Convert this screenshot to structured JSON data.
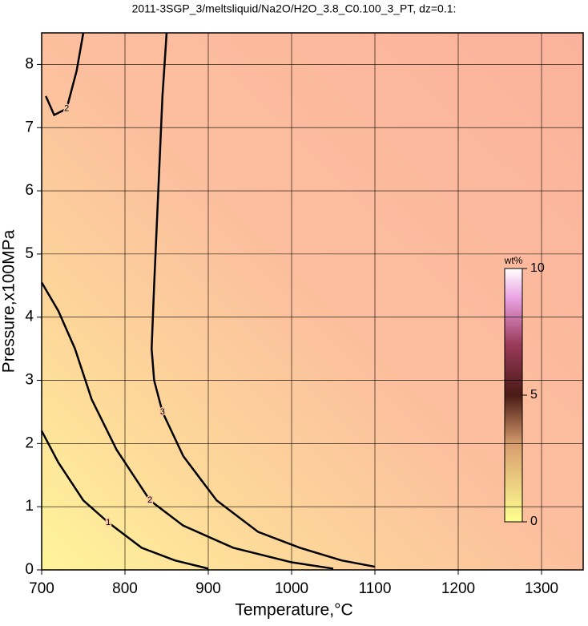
{
  "chart_data": {
    "type": "contour",
    "title": "2011-3SGP_3/meltsliquid/Na2O/H2O_3.8_C0.100_3_PT, dz=0.1:",
    "x_label": "Temperature,°C",
    "y_label": "Pressure,x100MPa",
    "xlim": [
      700,
      1350
    ],
    "xticks": [
      700,
      800,
      900,
      1000,
      1100,
      1200,
      1300
    ],
    "ylim": [
      0,
      8.5
    ],
    "yticks": [
      0,
      1,
      2,
      3,
      4,
      5,
      6,
      7,
      8
    ],
    "grid": true,
    "contours": [
      {
        "level": 1,
        "x": [
          700,
          720,
          750,
          780,
          820,
          860,
          900
        ],
        "y": [
          2.2,
          1.7,
          1.1,
          0.75,
          0.35,
          0.15,
          0.02
        ]
      },
      {
        "level": 2,
        "x": [
          700,
          720,
          740,
          760,
          790,
          830,
          870,
          930,
          1000,
          1050
        ],
        "y": [
          4.55,
          4.1,
          3.5,
          2.7,
          1.9,
          1.1,
          0.7,
          0.35,
          0.12,
          0.02
        ]
      },
      {
        "level": 2,
        "x": [
          705,
          715,
          730,
          742,
          750
        ],
        "y": [
          7.5,
          7.2,
          7.3,
          7.9,
          8.5
        ]
      },
      {
        "level": 3,
        "x": [
          850,
          845,
          840,
          835,
          832,
          835,
          845,
          870,
          910,
          960,
          1010,
          1060,
          1100
        ],
        "y": [
          8.5,
          7.5,
          6,
          4.5,
          3.5,
          3,
          2.5,
          1.8,
          1.1,
          0.6,
          0.35,
          0.15,
          0.05
        ]
      }
    ],
    "colorbar": {
      "label": "wt%",
      "lim": [
        0,
        10
      ],
      "ticks": [
        0,
        5,
        10
      ]
    }
  }
}
